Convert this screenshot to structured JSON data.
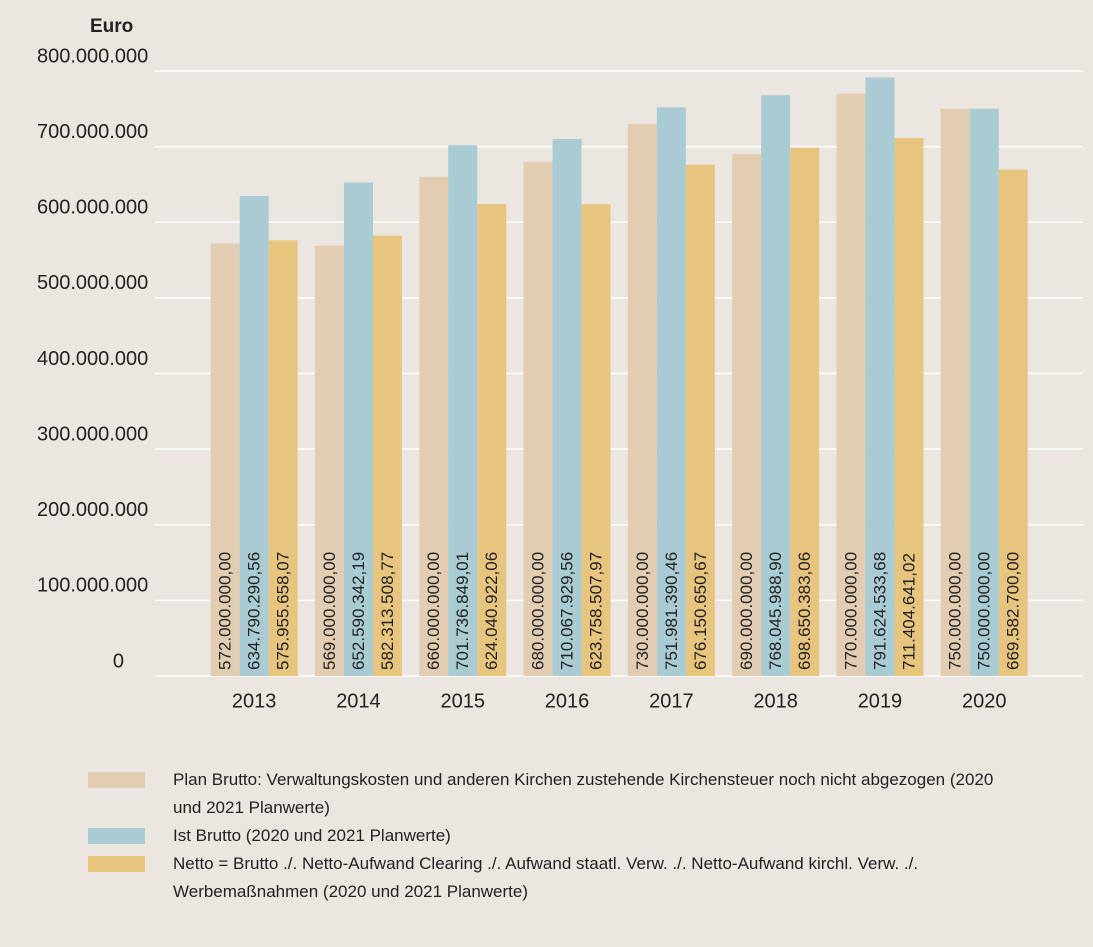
{
  "chart_data": {
    "type": "bar",
    "ylabel": "Euro",
    "categories": [
      "2013",
      "2014",
      "2015",
      "2016",
      "2017",
      "2018",
      "2019",
      "2020"
    ],
    "series": [
      {
        "name": "Plan Brutto: Verwaltungskosten und anderen Kirchen zustehende Kirchensteuer noch nicht abgezogen (2020 und 2021 Planwerte)",
        "color": "#e3cdb2",
        "values": [
          572000000,
          569000000,
          660000000,
          680000000,
          730000000,
          690000000,
          770000000,
          750000000
        ],
        "value_labels": [
          "572.000.000,00",
          "569.000.000,00",
          "660.000.000,00",
          "680.000.000,00",
          "730.000.000,00",
          "690.000.000,00",
          "770.000.000,00",
          "750.000.000,00"
        ]
      },
      {
        "name": "Ist Brutto (2020 und 2021 Planwerte)",
        "color": "#a9cbd3",
        "values": [
          634790290.56,
          652590342.19,
          701736849.01,
          710067929.56,
          751981390.46,
          768045988.9,
          791624533.68,
          750000000
        ],
        "value_labels": [
          "634.790.290,56",
          "652.590.342,19",
          "701.736.849,01",
          "710.067.929,56",
          "751.981.390,46",
          "768.045.988,90",
          "791.624.533,68",
          "750.000.000,00"
        ]
      },
      {
        "name": "Netto = Brutto ./. Netto-Aufwand Clearing ./. Aufwand staatl. Verw. ./. Netto-Aufwand kirchl. Verw. ./. Werbemaßnahmen (2020 und 2021 Planwerte)",
        "color": "#e8c57f",
        "values": [
          575955658.07,
          582313508.77,
          624040922.06,
          623758507.97,
          676150650.67,
          698650383.06,
          711404641.02,
          669582700.0
        ],
        "value_labels": [
          "575.955.658,07",
          "582.313.508,77",
          "624.040.922,06",
          "623.758.507,97",
          "676.150.650,67",
          "698.650.383,06",
          "711.404.641,02",
          "669.582.700,00"
        ]
      }
    ],
    "ylim": [
      0,
      800000000
    ],
    "yticks": [
      0,
      {
        "value": 100000000,
        "label": "100.000.000"
      },
      {
        "value": 200000000,
        "label": "200.000.000"
      },
      {
        "value": 300000000,
        "label": "300.000.000"
      },
      {
        "value": 400000000,
        "label": "400.000.000"
      },
      {
        "value": 500000000,
        "label": "500.000.000"
      },
      {
        "value": 600000000,
        "label": "600.000.000"
      },
      {
        "value": 700000000,
        "label": "700.000.000"
      },
      {
        "value": 800000000,
        "label": "800.000.000"
      }
    ],
    "grid": true
  }
}
